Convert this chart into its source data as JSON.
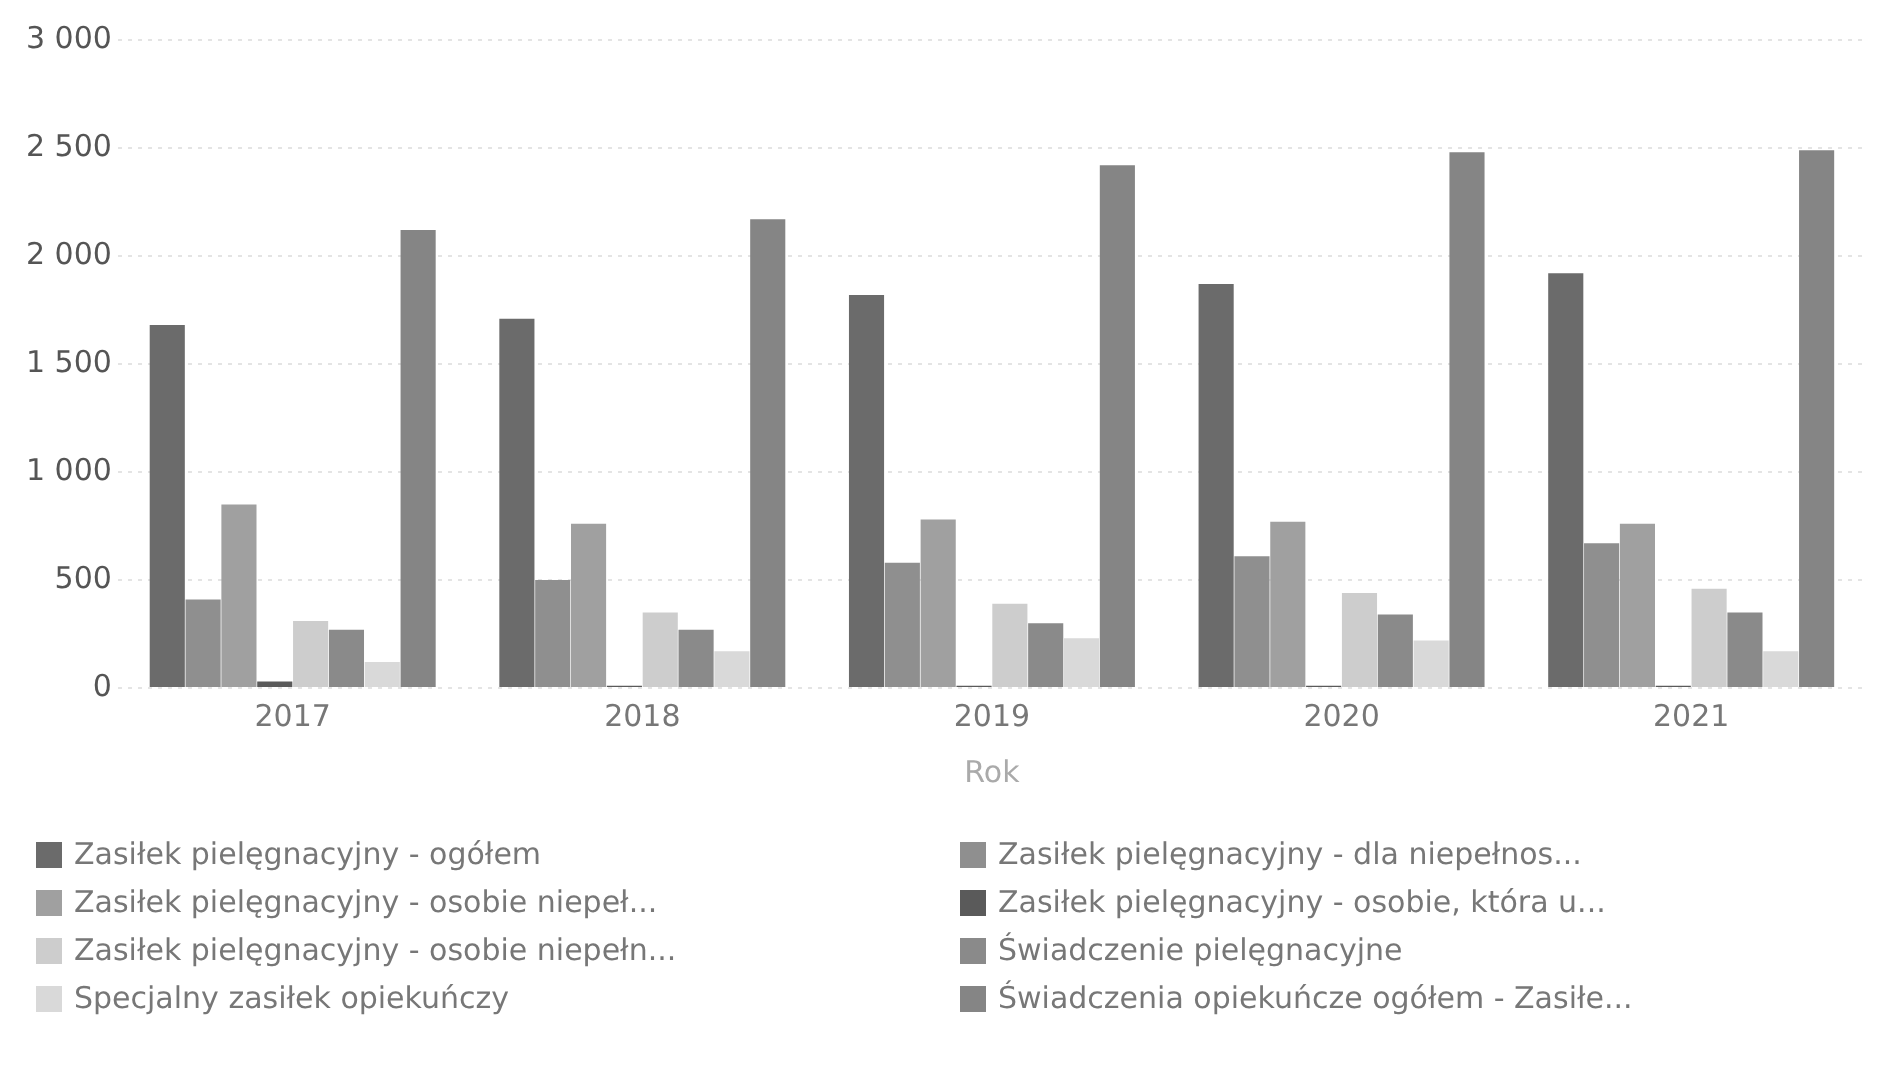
{
  "chart_data": {
    "type": "bar",
    "xlabel": "Rok",
    "categories": [
      "2017",
      "2018",
      "2019",
      "2020",
      "2021"
    ],
    "series": [
      {
        "name": "Zasiłek pielęgnacyjny - ogółem",
        "color": "#6b6b6b",
        "values": [
          1680,
          1710,
          1820,
          1870,
          1920
        ]
      },
      {
        "name": "Zasiłek pielęgnacyjny - dla niepełnos...",
        "color": "#8f8f8f",
        "values": [
          410,
          500,
          580,
          610,
          670
        ]
      },
      {
        "name": "Zasiłek pielęgnacyjny - osobie niepeł...",
        "color": "#a0a0a0",
        "values": [
          850,
          760,
          780,
          770,
          760
        ]
      },
      {
        "name": "Zasiłek pielęgnacyjny - osobie, która u...",
        "color": "#5a5a5a",
        "values": [
          30,
          10,
          10,
          10,
          10
        ]
      },
      {
        "name": "Zasiłek pielęgnacyjny - osobie niepełn...",
        "color": "#cdcdcd",
        "values": [
          310,
          350,
          390,
          440,
          460
        ]
      },
      {
        "name": "Świadczenie pielęgnacyjne",
        "color": "#8a8a8a",
        "values": [
          270,
          270,
          300,
          340,
          350
        ]
      },
      {
        "name": "Specjalny zasiłek opiekuńczy",
        "color": "#d9d9d9",
        "values": [
          120,
          170,
          230,
          220,
          170
        ]
      },
      {
        "name": "Świadczenia opiekuńcze ogółem - Zasiłe...",
        "color": "#858585",
        "values": [
          2120,
          2170,
          2420,
          2480,
          2490
        ]
      }
    ],
    "ylim": [
      0,
      3000
    ],
    "yticks": [
      {
        "value": 0,
        "label": "0"
      },
      {
        "value": 500,
        "label": "500"
      },
      {
        "value": 1000,
        "label": "1 000"
      },
      {
        "value": 1500,
        "label": "1 500"
      },
      {
        "value": 2000,
        "label": "2 000"
      },
      {
        "value": 2500,
        "label": "2 500"
      },
      {
        "value": 3000,
        "label": "3 000"
      }
    ],
    "grid": "y",
    "legend": "bottom"
  }
}
